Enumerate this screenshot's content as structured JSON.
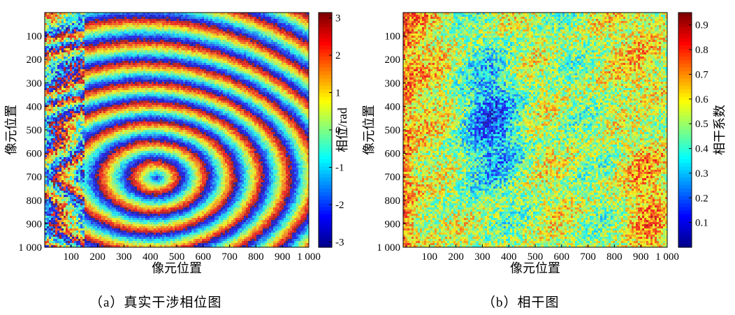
{
  "colors": {
    "jet": [
      "#00008f",
      "#0000ff",
      "#0080ff",
      "#00ffff",
      "#80ff80",
      "#ffff00",
      "#ff8000",
      "#ff0000",
      "#800000"
    ]
  },
  "chart_data": [
    {
      "type": "heatmap",
      "title": "",
      "caption": "（a）真实干涉相位图",
      "xlabel": "像元位置",
      "ylabel": "像元位置",
      "xlim": [
        0,
        1000
      ],
      "ylim": [
        1000,
        0
      ],
      "xticks": [
        "100",
        "200",
        "300",
        "400",
        "500",
        "600",
        "700",
        "800",
        "900",
        "1 000"
      ],
      "xtick_values": [
        100,
        200,
        300,
        400,
        500,
        600,
        700,
        800,
        900,
        1000
      ],
      "yticks": [
        "100",
        "200",
        "300",
        "400",
        "500",
        "600",
        "700",
        "800",
        "900",
        "1 000"
      ],
      "ytick_values": [
        100,
        200,
        300,
        400,
        500,
        600,
        700,
        800,
        900,
        1000
      ],
      "colorbar": {
        "label": "相位/rad",
        "range": [
          -3.14,
          3.14
        ],
        "ticks": [
          "3",
          "2",
          "1",
          "0",
          "-1",
          "-2",
          "-3"
        ],
        "tick_values": [
          3,
          2,
          1,
          0,
          -1,
          -2,
          -3
        ]
      },
      "description_values": {
        "fringe_center": [
          420,
          700
        ],
        "colormap": "jet"
      }
    },
    {
      "type": "heatmap",
      "title": "",
      "caption": "（b）相干图",
      "xlabel": "像元位置",
      "ylabel": "像元位置",
      "xlim": [
        0,
        1000
      ],
      "ylim": [
        1000,
        0
      ],
      "xticks": [
        "100",
        "200",
        "300",
        "400",
        "500",
        "600",
        "700",
        "800",
        "900",
        "1 000"
      ],
      "xtick_values": [
        100,
        200,
        300,
        400,
        500,
        600,
        700,
        800,
        900,
        1000
      ],
      "yticks": [
        "100",
        "200",
        "300",
        "400",
        "500",
        "600",
        "700",
        "800",
        "900",
        "1 000"
      ],
      "ytick_values": [
        100,
        200,
        300,
        400,
        500,
        600,
        700,
        800,
        900,
        1000
      ],
      "colorbar": {
        "label": "相干系数",
        "range": [
          0,
          0.95
        ],
        "ticks": [
          "0.9",
          "0.8",
          "0.7",
          "0.6",
          "0.5",
          "0.4",
          "0.3",
          "0.2",
          "0.1"
        ],
        "tick_values": [
          0.9,
          0.8,
          0.7,
          0.6,
          0.5,
          0.4,
          0.3,
          0.2,
          0.1
        ]
      },
      "description_values": {
        "colormap": "jet"
      }
    }
  ]
}
